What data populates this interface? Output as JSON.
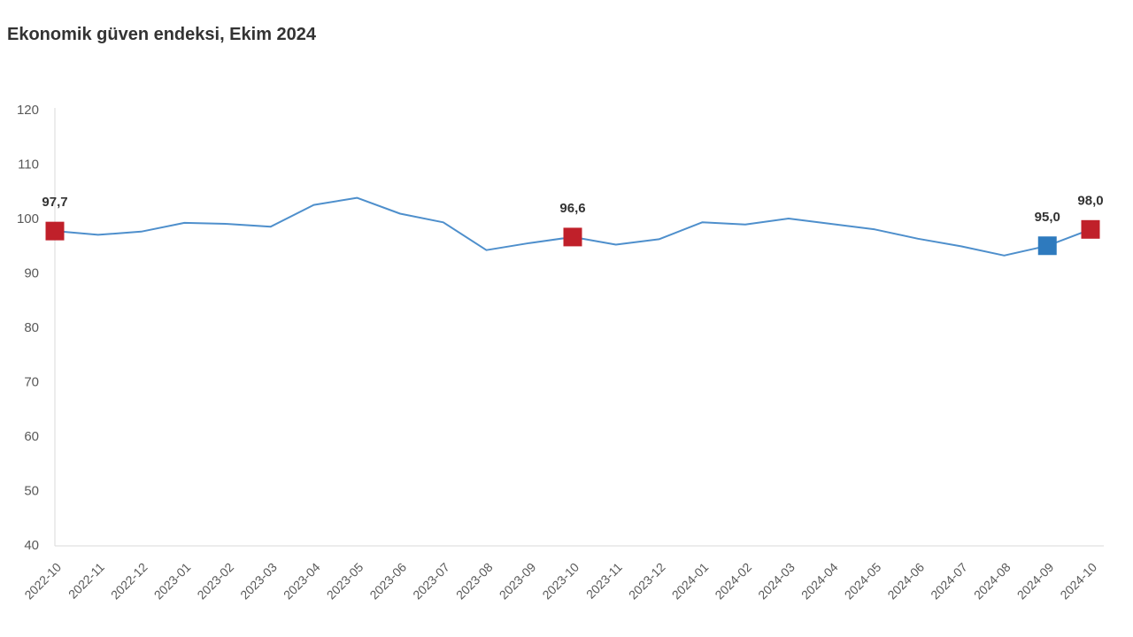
{
  "page": {
    "title": "Ekonomik güven endeksi, Ekim 2024"
  },
  "chart_data": {
    "type": "line",
    "title": "Ekonomik güven endeksi, Ekim 2024",
    "x": [
      "2022-10",
      "2022-11",
      "2022-12",
      "2023-01",
      "2023-02",
      "2023-03",
      "2023-04",
      "2023-05",
      "2023-06",
      "2023-07",
      "2023-08",
      "2023-09",
      "2023-10",
      "2023-11",
      "2023-12",
      "2024-01",
      "2024-02",
      "2024-03",
      "2024-04",
      "2024-05",
      "2024-06",
      "2024-07",
      "2024-08",
      "2024-09",
      "2024-10"
    ],
    "values": [
      97.7,
      97.0,
      97.6,
      99.2,
      99.0,
      98.5,
      102.5,
      103.8,
      100.9,
      99.3,
      94.2,
      95.5,
      96.6,
      95.2,
      96.2,
      99.3,
      98.9,
      100.0,
      99.0,
      98.0,
      96.3,
      94.9,
      93.2,
      95.0,
      98.0
    ],
    "ylim": [
      40,
      120
    ],
    "yticks": [
      40,
      50,
      60,
      70,
      80,
      90,
      100,
      110,
      120
    ],
    "grid": false,
    "legend": false,
    "line_color": "#4e8fcc",
    "axis_color": "#d9d9d9",
    "tick_label_color": "#595959",
    "value_label_color": "#333333",
    "highlighted_points": [
      {
        "x": "2022-10",
        "index": 0,
        "value": 97.7,
        "label": "97,7",
        "marker_color": "#c0202a"
      },
      {
        "x": "2023-10",
        "index": 12,
        "value": 96.6,
        "label": "96,6",
        "marker_color": "#c0202a"
      },
      {
        "x": "2024-09",
        "index": 23,
        "value": 95.0,
        "label": "95,0",
        "marker_color": "#2e7abe"
      },
      {
        "x": "2024-10",
        "index": 24,
        "value": 98.0,
        "label": "98,0",
        "marker_color": "#c0202a"
      }
    ]
  }
}
